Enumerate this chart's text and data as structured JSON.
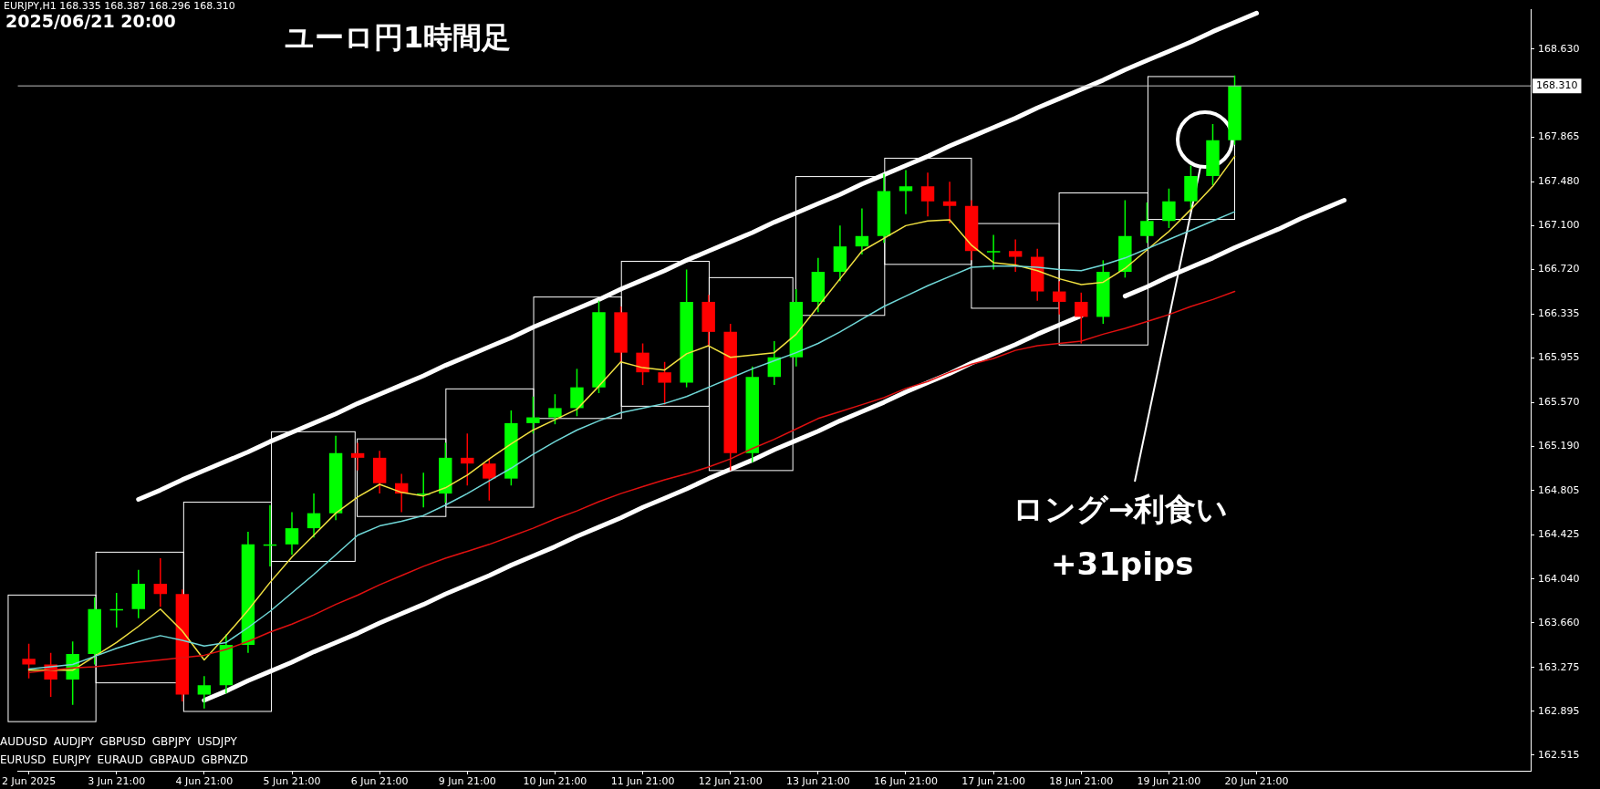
{
  "chart_data": {
    "type": "candlestick",
    "title": "ユーロ円1時間足",
    "subtitle": "2025/06/21 20:00",
    "annotations": [
      "EURJPY,H1  168.335 168.387 168.296 168.310",
      "ロング→利食い",
      "+31pips",
      "AUDUSD AUDJPY GBPUSD GBPJPY USDJPY",
      "EURUSD EURJPY EURAUD GBPAUD GBPNZD"
    ],
    "categories": [
      "2 Jun 2025",
      null,
      null,
      null,
      "3 Jun 21:00",
      null,
      null,
      null,
      "4 Jun 21:00",
      null,
      null,
      null,
      "5 Jun 21:00",
      null,
      null,
      null,
      "6 Jun 21:00",
      null,
      null,
      null,
      "9 Jun 21:00",
      null,
      null,
      null,
      "10 Jun 21:00",
      null,
      null,
      null,
      "11 Jun 21:00",
      null,
      null,
      null,
      "12 Jun 21:00",
      null,
      null,
      null,
      "13 Jun 21:00",
      null,
      null,
      null,
      "16 Jun 21:00",
      null,
      null,
      null,
      "17 Jun 21:00",
      null,
      null,
      null,
      "18 Jun 21:00",
      null,
      null,
      null,
      "19 Jun 21:00",
      null,
      null,
      null,
      "20 Jun 21:00",
      null,
      null,
      null,
      null,
      null,
      null,
      null,
      null,
      null,
      null,
      null,
      null
    ],
    "ylim": [
      162.38,
      168.97
    ],
    "yticks": [
      162.515,
      162.895,
      163.275,
      {
        "value": 163.66,
        "label": "163.660"
      },
      {
        "value": 164.04,
        "label": "164.040"
      },
      164.425,
      164.805,
      {
        "value": 165.19,
        "label": "165.190"
      },
      {
        "value": 165.57,
        "label": "165.570"
      },
      165.955,
      166.335,
      {
        "value": 166.72,
        "label": "166.720"
      },
      {
        "value": 167.1,
        "label": "167.100"
      },
      {
        "value": 167.48,
        "label": "167.480"
      },
      167.865,
      {
        "value": 168.63,
        "label": "168.630"
      }
    ],
    "ref_lines": [
      {
        "axis": "y",
        "value": 168.31,
        "label": "168.310",
        "color": "#c0c0c0"
      }
    ],
    "series": [
      {
        "type": "line",
        "color": "#e01010",
        "values": [
          163.23,
          163.25,
          163.27,
          163.28,
          163.3,
          163.32,
          163.34,
          163.36,
          163.38,
          163.43,
          163.5,
          163.58,
          163.65,
          163.73,
          163.82,
          163.9,
          163.99,
          164.07,
          164.15,
          164.22,
          164.28,
          164.34,
          164.41,
          164.48,
          164.56,
          164.63,
          164.71,
          164.78,
          164.84,
          164.9,
          164.95,
          165.01,
          165.08,
          165.17,
          165.25,
          165.34,
          165.43,
          165.49,
          165.55,
          165.61,
          165.69,
          165.75,
          165.83,
          165.9,
          165.95,
          166.02,
          166.06,
          166.08,
          166.1,
          166.16,
          166.21,
          166.27,
          166.33,
          166.4,
          166.46,
          166.53,
          null,
          null,
          null,
          null,
          null,
          null,
          null,
          null,
          null,
          null,
          null,
          null,
          null
        ]
      },
      {
        "type": "line",
        "color": "#70d8d8",
        "values": [
          163.26,
          163.28,
          163.3,
          163.37,
          163.44,
          163.5,
          163.55,
          163.51,
          163.46,
          163.49,
          163.62,
          163.76,
          163.92,
          164.08,
          164.25,
          164.42,
          164.5,
          164.54,
          164.59,
          164.68,
          164.78,
          164.89,
          165.0,
          165.12,
          165.23,
          165.33,
          165.41,
          165.48,
          165.52,
          165.56,
          165.62,
          165.7,
          165.78,
          165.86,
          165.93,
          166.0,
          166.08,
          166.18,
          166.29,
          166.4,
          166.49,
          166.58,
          166.66,
          166.74,
          166.75,
          166.75,
          166.74,
          166.72,
          166.71,
          166.76,
          166.82,
          166.9,
          166.98,
          167.06,
          167.14,
          167.22,
          null,
          null,
          null,
          null,
          null,
          null,
          null,
          null,
          null,
          null,
          null,
          null,
          null
        ]
      },
      {
        "type": "line",
        "color": "#f0e040",
        "values": [
          163.25,
          163.25,
          163.25,
          163.37,
          163.49,
          163.63,
          163.78,
          163.59,
          163.34,
          163.55,
          163.77,
          164.01,
          164.23,
          164.42,
          164.61,
          164.75,
          164.86,
          164.79,
          164.76,
          164.83,
          164.94,
          165.08,
          165.21,
          165.33,
          165.42,
          165.51,
          165.71,
          165.92,
          165.87,
          165.85,
          165.99,
          166.06,
          165.96,
          165.98,
          166.0,
          166.16,
          166.4,
          166.64,
          166.88,
          166.99,
          167.1,
          167.14,
          167.15,
          166.93,
          166.78,
          166.76,
          166.71,
          166.64,
          166.59,
          166.61,
          166.73,
          166.89,
          167.05,
          167.24,
          167.44,
          167.7,
          null,
          null,
          null,
          null,
          null,
          null,
          null,
          null,
          null,
          null,
          null,
          null,
          null
        ]
      },
      {
        "type": "line",
        "color": "#ffffff",
        "values": [
          null,
          null,
          null,
          null,
          null,
          164.73,
          164.81,
          164.9,
          164.98,
          165.06,
          165.14,
          165.23,
          165.31,
          165.39,
          165.47,
          165.56,
          165.64,
          165.72,
          165.8,
          165.89,
          165.97,
          166.05,
          166.13,
          166.22,
          166.3,
          166.38,
          166.46,
          166.55,
          166.63,
          166.71,
          166.8,
          166.88,
          166.96,
          167.04,
          167.13,
          167.21,
          167.29,
          167.37,
          167.46,
          167.54,
          167.62,
          167.7,
          167.79,
          167.87,
          167.95,
          168.03,
          168.12,
          168.2,
          168.28,
          168.36,
          168.45,
          168.53,
          168.61,
          168.69,
          168.78,
          168.86,
          168.94,
          null,
          null,
          null,
          null,
          null,
          null,
          null,
          null,
          null,
          null,
          null,
          null
        ]
      },
      {
        "type": "line",
        "color": "#ffffff",
        "values": [
          null,
          null,
          null,
          null,
          null,
          null,
          null,
          null,
          162.99,
          163.07,
          163.16,
          163.24,
          163.32,
          163.41,
          163.49,
          163.57,
          163.66,
          163.74,
          163.82,
          163.91,
          163.99,
          164.07,
          164.16,
          164.24,
          164.32,
          164.41,
          164.49,
          164.57,
          164.66,
          164.74,
          164.82,
          164.91,
          164.99,
          165.07,
          165.16,
          165.24,
          165.32,
          165.41,
          165.49,
          165.57,
          165.66,
          165.74,
          165.82,
          165.91,
          165.99,
          166.07,
          166.16,
          166.24,
          166.32,
          null,
          166.49,
          166.57,
          166.66,
          166.74,
          166.82,
          166.91,
          166.99,
          167.07,
          167.16,
          167.24,
          167.32,
          null,
          null,
          null,
          null,
          null,
          null,
          null,
          null
        ]
      },
      {
        "ohlc": [
          [
            163.35,
            163.48,
            163.18,
            163.3
          ],
          [
            163.3,
            163.4,
            163.02,
            163.17
          ],
          [
            163.17,
            163.5,
            162.95,
            163.39
          ],
          [
            163.39,
            163.88,
            163.3,
            163.78
          ],
          [
            163.78,
            163.92,
            163.62,
            163.78
          ],
          [
            163.78,
            164.12,
            163.7,
            164.0
          ],
          [
            164.0,
            164.22,
            163.8,
            163.91
          ],
          [
            163.91,
            163.95,
            162.98,
            163.04
          ],
          [
            163.04,
            163.2,
            162.92,
            163.12
          ],
          [
            163.12,
            163.56,
            163.05,
            163.47
          ],
          [
            163.47,
            164.45,
            163.4,
            164.34
          ],
          [
            164.34,
            164.68,
            164.15,
            164.34
          ],
          [
            164.34,
            164.62,
            164.25,
            164.48
          ],
          [
            164.48,
            164.78,
            164.4,
            164.61
          ],
          [
            164.61,
            165.28,
            164.55,
            165.13
          ],
          [
            165.13,
            165.22,
            164.98,
            165.09
          ],
          [
            165.09,
            165.15,
            164.78,
            164.87
          ],
          [
            164.87,
            164.95,
            164.62,
            164.78
          ],
          [
            164.78,
            164.96,
            164.66,
            164.78
          ],
          [
            164.78,
            165.22,
            164.7,
            165.09
          ],
          [
            165.09,
            165.3,
            164.85,
            165.04
          ],
          [
            165.04,
            165.08,
            164.72,
            164.91
          ],
          [
            164.91,
            165.5,
            164.85,
            165.39
          ],
          [
            165.39,
            165.62,
            165.3,
            165.44
          ],
          [
            165.44,
            165.64,
            165.38,
            165.52
          ],
          [
            165.52,
            165.86,
            165.45,
            165.7
          ],
          [
            165.7,
            166.45,
            165.65,
            166.35
          ],
          [
            166.35,
            166.4,
            165.92,
            166.0
          ],
          [
            166.0,
            166.08,
            165.72,
            165.83
          ],
          [
            165.83,
            165.92,
            165.55,
            165.74
          ],
          [
            165.74,
            166.72,
            165.7,
            166.44
          ],
          [
            166.44,
            166.5,
            166.05,
            166.18
          ],
          [
            166.18,
            166.25,
            164.98,
            165.13
          ],
          [
            165.13,
            165.88,
            165.05,
            165.79
          ],
          [
            165.79,
            166.1,
            165.72,
            165.96
          ],
          [
            165.96,
            166.55,
            165.88,
            166.44
          ],
          [
            166.44,
            166.82,
            166.35,
            166.7
          ],
          [
            166.7,
            167.1,
            166.62,
            166.92
          ],
          [
            166.92,
            167.25,
            166.85,
            167.01
          ],
          [
            167.01,
            167.55,
            166.95,
            167.4
          ],
          [
            167.4,
            167.58,
            167.2,
            167.44
          ],
          [
            167.44,
            167.56,
            167.18,
            167.31
          ],
          [
            167.31,
            167.48,
            167.12,
            167.27
          ],
          [
            167.27,
            167.32,
            166.8,
            166.88
          ],
          [
            166.88,
            167.02,
            166.72,
            166.88
          ],
          [
            166.88,
            166.98,
            166.7,
            166.83
          ],
          [
            166.83,
            166.9,
            166.45,
            166.53
          ],
          [
            166.53,
            166.62,
            166.33,
            166.44
          ],
          [
            166.44,
            166.52,
            166.08,
            166.31
          ],
          [
            166.31,
            166.8,
            166.25,
            166.7
          ],
          [
            166.7,
            167.32,
            166.65,
            167.01
          ],
          [
            167.01,
            167.3,
            166.95,
            167.14
          ],
          [
            167.14,
            167.42,
            167.08,
            167.31
          ],
          [
            167.31,
            167.62,
            167.25,
            167.53
          ],
          [
            167.53,
            167.98,
            167.45,
            167.84
          ],
          [
            167.84,
            168.4,
            167.8,
            168.31
          ],
          null,
          null,
          null,
          null,
          null,
          null,
          null,
          null,
          null,
          null,
          null,
          null,
          null
        ],
        "colors": [
          "#ff0000",
          "#ff0000",
          "#00ff00",
          "#00ff00",
          "#00ff00",
          "#00ff00",
          "#ff0000",
          "#ff0000",
          "#00ff00",
          "#00ff00",
          "#00ff00",
          "#00ff00",
          "#00ff00",
          "#00ff00",
          "#00ff00",
          "#ff0000",
          "#ff0000",
          "#ff0000",
          "#00ff00",
          "#00ff00",
          "#ff0000",
          "#ff0000",
          "#00ff00",
          "#00ff00",
          "#00ff00",
          "#00ff00",
          "#00ff00",
          "#ff0000",
          "#ff0000",
          "#ff0000",
          "#00ff00",
          "#ff0000",
          "#ff0000",
          "#00ff00",
          "#00ff00",
          "#00ff00",
          "#00ff00",
          "#00ff00",
          "#00ff00",
          "#00ff00",
          "#00ff00",
          "#ff0000",
          "#ff0000",
          "#ff0000",
          "#00ff00",
          "#ff0000",
          "#ff0000",
          "#ff0000",
          "#ff0000",
          "#00ff00",
          "#00ff00",
          "#00ff00",
          "#00ff00",
          "#00ff00",
          "#00ff00",
          "#00ff00",
          null,
          null,
          null,
          null,
          null,
          null,
          null,
          null,
          null,
          null,
          null,
          null,
          null
        ]
      }
    ]
  }
}
